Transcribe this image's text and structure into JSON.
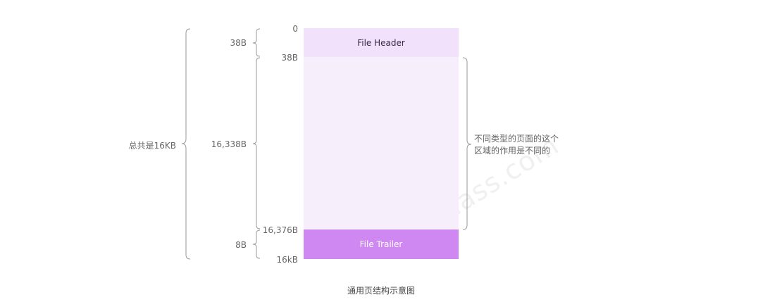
{
  "blocks": {
    "header": "File Header",
    "trailer": "File Trailer"
  },
  "offsets": {
    "start": "0",
    "header_end": "38B",
    "body_end": "16,376B",
    "page_end": "16kB"
  },
  "sizes": {
    "header": "38B",
    "body": "16,338B",
    "trailer": "8B"
  },
  "total_label": "总共是16KB",
  "body_note": {
    "line1": "不同类型的页面的这个",
    "line2": "区域的作用是不同的"
  },
  "caption": "通用页结构示意图",
  "watermark": "ydlclass.com",
  "colors": {
    "header_fill": "#f2e1fa",
    "body_fill": "#f6eefb",
    "trailer_fill": "#cf88f2"
  }
}
